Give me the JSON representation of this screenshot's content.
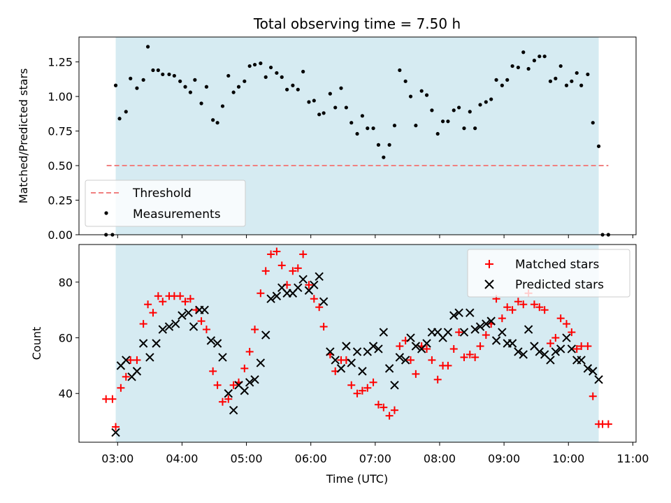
{
  "chart_data": [
    {
      "type": "scatter",
      "title": "Total observing time = 7.50 h",
      "xlabel": "",
      "ylabel": "Matched/Predicted stars",
      "xlim_hours": [
        2.4,
        11.05
      ],
      "ylim": [
        0,
        1.43
      ],
      "yticks": [
        "0.00",
        "0.25",
        "0.50",
        "0.75",
        "1.00",
        "1.25"
      ],
      "shaded_span_hours": [
        2.97,
        10.47
      ],
      "threshold": {
        "name": "Threshold",
        "value": 0.5,
        "x_range_hours": [
          2.83,
          10.62
        ],
        "color": "#f08080"
      },
      "legend": {
        "position": "lower-left",
        "entries": [
          "Threshold",
          "Measurements"
        ]
      },
      "series": [
        {
          "name": "Measurements",
          "marker": "dot",
          "color": "#000000",
          "x_hours": [
            2.82,
            2.92,
            2.97,
            3.03,
            3.13,
            3.2,
            3.3,
            3.4,
            3.47,
            3.55,
            3.63,
            3.7,
            3.8,
            3.88,
            3.97,
            4.05,
            4.13,
            4.2,
            4.3,
            4.38,
            4.48,
            4.55,
            4.63,
            4.72,
            4.8,
            4.88,
            4.97,
            5.05,
            5.13,
            5.22,
            5.3,
            5.38,
            5.47,
            5.55,
            5.63,
            5.72,
            5.8,
            5.88,
            5.97,
            6.05,
            6.13,
            6.2,
            6.3,
            6.38,
            6.47,
            6.55,
            6.63,
            6.72,
            6.8,
            6.88,
            6.97,
            7.05,
            7.13,
            7.22,
            7.3,
            7.38,
            7.47,
            7.55,
            7.63,
            7.72,
            7.8,
            7.88,
            7.97,
            8.05,
            8.13,
            8.22,
            8.3,
            8.38,
            8.47,
            8.55,
            8.63,
            8.72,
            8.8,
            8.88,
            8.97,
            9.05,
            9.13,
            9.22,
            9.3,
            9.38,
            9.47,
            9.55,
            9.63,
            9.72,
            9.8,
            9.88,
            9.97,
            10.05,
            10.13,
            10.2,
            10.3,
            10.38,
            10.47,
            10.53,
            10.62
          ],
          "y": [
            0.0,
            0.0,
            1.08,
            0.84,
            0.89,
            1.13,
            1.06,
            1.12,
            1.36,
            1.19,
            1.19,
            1.16,
            1.16,
            1.15,
            1.11,
            1.07,
            1.03,
            1.12,
            0.95,
            1.07,
            0.83,
            0.81,
            0.93,
            1.15,
            1.03,
            1.07,
            1.11,
            1.22,
            1.23,
            1.24,
            1.14,
            1.21,
            1.17,
            1.14,
            1.05,
            1.08,
            1.05,
            1.18,
            0.96,
            0.97,
            0.87,
            0.88,
            1.02,
            0.92,
            1.06,
            0.92,
            0.81,
            0.73,
            0.86,
            0.77,
            0.77,
            0.65,
            0.56,
            0.65,
            0.79,
            1.19,
            1.11,
            1.0,
            0.79,
            1.04,
            1.01,
            0.9,
            0.73,
            0.82,
            0.82,
            0.9,
            0.92,
            0.77,
            0.89,
            0.77,
            0.94,
            0.96,
            0.98,
            1.12,
            1.08,
            1.12,
            1.22,
            1.21,
            1.32,
            1.2,
            1.26,
            1.29,
            1.29,
            1.11,
            1.13,
            1.22,
            1.08,
            1.11,
            1.17,
            1.08,
            1.16,
            0.81,
            0.64,
            0.0,
            0.0
          ]
        }
      ]
    },
    {
      "type": "scatter",
      "title": "",
      "xlabel": "Time (UTC)",
      "ylabel": "Count",
      "xlim_hours": [
        2.4,
        11.05
      ],
      "ylim": [
        22.5,
        93.5
      ],
      "yticks": [
        "40",
        "60",
        "80"
      ],
      "xtick_labels": [
        "03:00",
        "04:00",
        "05:00",
        "06:00",
        "07:00",
        "08:00",
        "09:00",
        "10:00",
        "11:00"
      ],
      "shaded_span_hours": [
        2.97,
        10.47
      ],
      "legend": {
        "position": "top-right",
        "entries": [
          "Matched stars",
          "Predicted stars"
        ]
      },
      "series": [
        {
          "name": "Matched stars",
          "marker": "plus",
          "color": "#ff0000",
          "x_hours": [
            2.82,
            2.92,
            2.97,
            3.05,
            3.13,
            3.2,
            3.3,
            3.4,
            3.47,
            3.55,
            3.63,
            3.7,
            3.8,
            3.88,
            3.97,
            4.05,
            4.13,
            4.22,
            4.3,
            4.38,
            4.48,
            4.55,
            4.63,
            4.72,
            4.8,
            4.88,
            4.97,
            5.05,
            5.13,
            5.22,
            5.3,
            5.38,
            5.47,
            5.55,
            5.63,
            5.72,
            5.8,
            5.88,
            5.97,
            6.05,
            6.13,
            6.2,
            6.3,
            6.38,
            6.47,
            6.55,
            6.63,
            6.72,
            6.8,
            6.88,
            6.97,
            7.05,
            7.13,
            7.22,
            7.3,
            7.38,
            7.47,
            7.55,
            7.63,
            7.72,
            7.8,
            7.88,
            7.97,
            8.05,
            8.13,
            8.22,
            8.3,
            8.38,
            8.47,
            8.55,
            8.63,
            8.72,
            8.8,
            8.88,
            8.97,
            9.05,
            9.13,
            9.22,
            9.3,
            9.38,
            9.47,
            9.55,
            9.63,
            9.72,
            9.8,
            9.88,
            9.97,
            10.05,
            10.13,
            10.2,
            10.3,
            10.38,
            10.47,
            10.53,
            10.62
          ],
          "y": [
            38,
            38,
            28,
            42,
            46,
            52,
            52,
            65,
            72,
            69,
            75,
            73,
            75,
            75,
            75,
            73,
            74,
            70,
            66,
            63,
            48,
            43,
            37,
            38,
            43,
            44,
            49,
            55,
            63,
            76,
            84,
            90,
            91,
            86,
            79,
            84,
            85,
            90,
            79,
            74,
            71,
            64,
            54,
            48,
            52,
            52,
            43,
            40,
            41,
            42,
            44,
            36,
            35,
            32,
            34,
            57,
            59,
            52,
            47,
            57,
            56,
            52,
            45,
            50,
            50,
            56,
            62,
            53,
            54,
            53,
            57,
            61,
            65,
            74,
            67,
            71,
            70,
            73,
            72,
            76,
            72,
            71,
            70,
            58,
            60,
            67,
            65,
            62,
            56,
            57,
            57,
            39,
            29,
            29,
            29
          ]
        },
        {
          "name": "Predicted stars",
          "marker": "x",
          "color": "#000000",
          "x_hours": [
            2.97,
            3.05,
            3.13,
            3.22,
            3.3,
            3.4,
            3.5,
            3.6,
            3.7,
            3.8,
            3.9,
            4.0,
            4.1,
            4.18,
            4.27,
            4.35,
            4.45,
            4.55,
            4.63,
            4.72,
            4.8,
            4.88,
            4.97,
            5.05,
            5.13,
            5.22,
            5.3,
            5.38,
            5.47,
            5.55,
            5.63,
            5.72,
            5.8,
            5.88,
            5.97,
            6.05,
            6.13,
            6.2,
            6.3,
            6.38,
            6.47,
            6.55,
            6.63,
            6.72,
            6.8,
            6.88,
            6.97,
            7.05,
            7.13,
            7.22,
            7.3,
            7.38,
            7.47,
            7.55,
            7.63,
            7.72,
            7.8,
            7.88,
            7.97,
            8.05,
            8.13,
            8.22,
            8.3,
            8.38,
            8.47,
            8.55,
            8.63,
            8.72,
            8.8,
            8.88,
            8.97,
            9.05,
            9.13,
            9.22,
            9.3,
            9.38,
            9.47,
            9.55,
            9.63,
            9.72,
            9.8,
            9.88,
            9.97,
            10.05,
            10.13,
            10.2,
            10.3,
            10.38,
            10.47
          ],
          "y": [
            26,
            50,
            52,
            46,
            48,
            58,
            53,
            58,
            63,
            64,
            65,
            68,
            69,
            64,
            70,
            70,
            59,
            58,
            53,
            40,
            34,
            43,
            41,
            44,
            45,
            51,
            61,
            74,
            75,
            78,
            76,
            76,
            78,
            81,
            77,
            79,
            82,
            73,
            55,
            52,
            49,
            57,
            51,
            55,
            48,
            55,
            57,
            56,
            62,
            49,
            43,
            53,
            52,
            60,
            57,
            56,
            58,
            62,
            62,
            60,
            62,
            68,
            69,
            62,
            69,
            63,
            64,
            65,
            66,
            59,
            62,
            58,
            58,
            55,
            54,
            63,
            57,
            55,
            54,
            52,
            55,
            56,
            60,
            56,
            52,
            52,
            49,
            48,
            45
          ]
        }
      ]
    }
  ]
}
